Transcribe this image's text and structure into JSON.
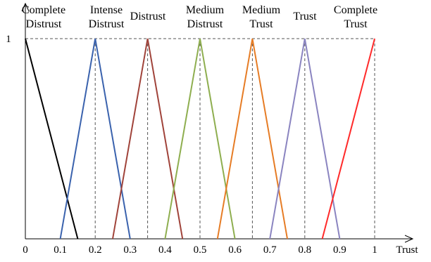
{
  "chart_data": {
    "type": "line",
    "title": "",
    "xlabel": "Trust",
    "ylabel": "",
    "xlim": [
      0,
      1.05
    ],
    "ylim": [
      0,
      1
    ],
    "x_ticks": [
      "0",
      "0.1",
      "0.2",
      "0.3",
      "0.4",
      "0.5",
      "0.6",
      "0.7",
      "0.8",
      "0.9",
      "1"
    ],
    "x_tick_values": [
      0,
      0.1,
      0.2,
      0.3,
      0.4,
      0.5,
      0.6,
      0.7,
      0.8,
      0.9,
      1.0
    ],
    "y_ticks": [
      "1"
    ],
    "y_tick_values": [
      1
    ],
    "grid": false,
    "guide_lines": "dashed verticals at each peak and dashed horizontal at membership 1",
    "series": [
      {
        "label_lines": [
          "Complete",
          "Distrust"
        ],
        "color": "#000000",
        "peak": 0,
        "points": [
          [
            0,
            1
          ],
          [
            0.15,
            0
          ]
        ]
      },
      {
        "label_lines": [
          "Intense",
          "Distrust"
        ],
        "color": "#3a62ad",
        "peak": 0.2,
        "points": [
          [
            0.1,
            0
          ],
          [
            0.2,
            1
          ],
          [
            0.3,
            0
          ]
        ]
      },
      {
        "label_lines": [
          "Distrust"
        ],
        "color": "#a0433a",
        "peak": 0.35,
        "points": [
          [
            0.25,
            0
          ],
          [
            0.35,
            1
          ],
          [
            0.45,
            0
          ]
        ]
      },
      {
        "label_lines": [
          "Medium",
          "Distrust"
        ],
        "color": "#8eae4f",
        "peak": 0.5,
        "points": [
          [
            0.4,
            0
          ],
          [
            0.5,
            1
          ],
          [
            0.6,
            0
          ]
        ]
      },
      {
        "label_lines": [
          "Medium",
          "Trust"
        ],
        "color": "#e67c25",
        "peak": 0.65,
        "points": [
          [
            0.55,
            0
          ],
          [
            0.65,
            1
          ],
          [
            0.75,
            0
          ]
        ]
      },
      {
        "label_lines": [
          "Trust"
        ],
        "color": "#8a84c0",
        "peak": 0.8,
        "points": [
          [
            0.7,
            0
          ],
          [
            0.8,
            1
          ],
          [
            0.9,
            0
          ]
        ]
      },
      {
        "label_lines": [
          "Complete",
          "Trust"
        ],
        "color": "#ff2a2a",
        "peak": 1.0,
        "points": [
          [
            0.85,
            0
          ],
          [
            1.0,
            1
          ]
        ]
      }
    ]
  }
}
